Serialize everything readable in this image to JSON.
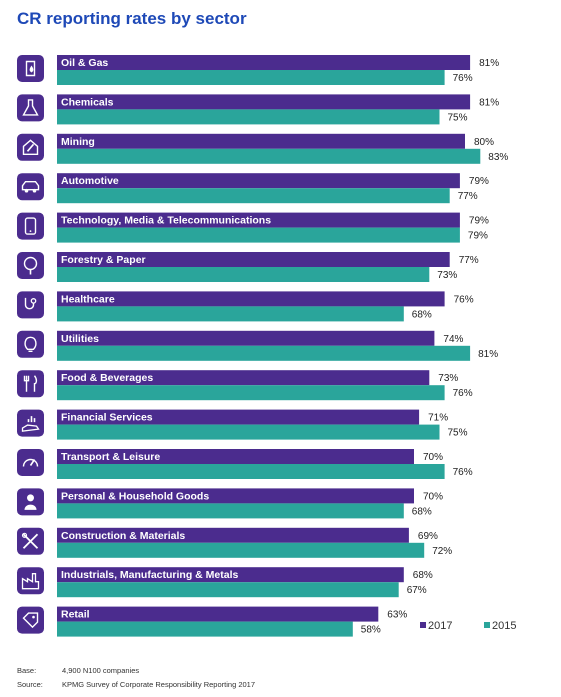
{
  "chart_data": {
    "type": "bar",
    "orientation": "horizontal",
    "title": "CR reporting rates by sector",
    "xlabel": "",
    "ylabel": "",
    "xlim": [
      0,
      100
    ],
    "grid": false,
    "legend_position": "bottom-right",
    "value_suffix": "%",
    "categories": [
      "Oil & Gas",
      "Chemicals",
      "Mining",
      "Automotive",
      "Technology, Media & Telecommunications",
      "Forestry & Paper",
      "Healthcare",
      "Utilities",
      "Food & Beverages",
      "Financial Services",
      "Transport & Leisure",
      "Personal & Household Goods",
      "Construction & Materials",
      "Industrials, Manufacturing & Metals",
      "Retail"
    ],
    "icons": [
      "oil-drop-icon",
      "flask-icon",
      "mine-icon",
      "car-icon",
      "smartphone-icon",
      "tree-icon",
      "stethoscope-icon",
      "lightbulb-icon",
      "cutlery-icon",
      "hand-coins-icon",
      "speedometer-icon",
      "person-icon",
      "tools-icon",
      "factory-icon",
      "price-tag-icon"
    ],
    "series": [
      {
        "name": "2017",
        "color": "#4b2c8e",
        "values": [
          81,
          81,
          80,
          79,
          79,
          77,
          76,
          74,
          73,
          71,
          70,
          70,
          69,
          68,
          63
        ]
      },
      {
        "name": "2015",
        "color": "#2aa59b",
        "values": [
          76,
          75,
          83,
          77,
          79,
          73,
          68,
          81,
          76,
          75,
          76,
          68,
          72,
          67,
          58
        ]
      }
    ]
  },
  "colors": {
    "title": "#1e49b7",
    "icon_bg": "#4b2c8e",
    "label_text": "#ffffff",
    "value_text": "#222222"
  },
  "footer": {
    "base_label": "Base:",
    "base_value": "4,900 N100 companies",
    "source_label": "Source:",
    "source_value": "KPMG Survey of Corporate Responsibility Reporting 2017"
  }
}
